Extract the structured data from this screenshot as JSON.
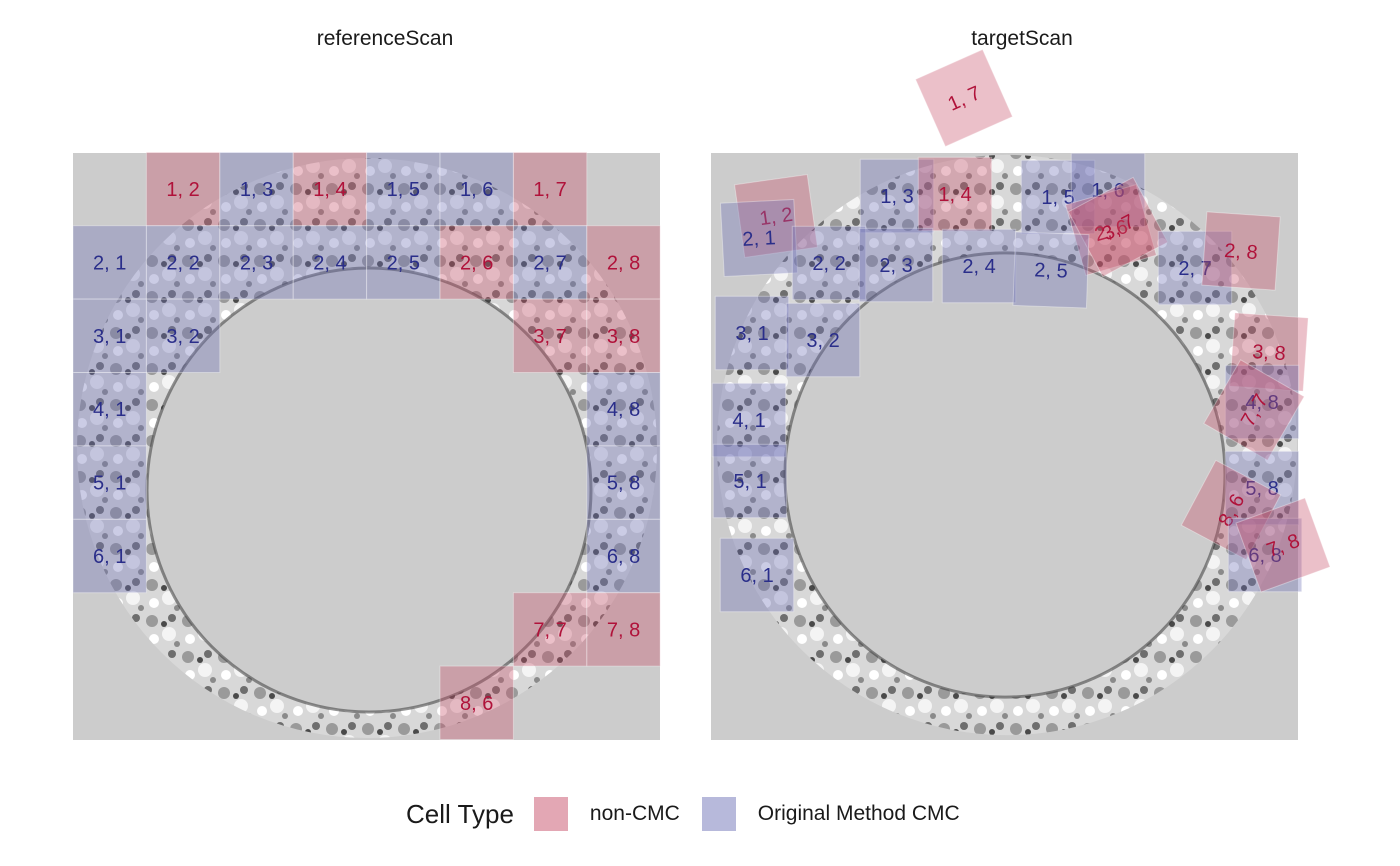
{
  "panels": [
    {
      "title": "referenceScan"
    },
    {
      "title": "targetScan"
    }
  ],
  "legend": {
    "title": "Cell Type",
    "items": [
      {
        "label": "non-CMC",
        "color": "#c8506a"
      },
      {
        "label": "Original Method CMC",
        "color": "#6f73b8"
      }
    ]
  },
  "colors": {
    "background": "#cccccc",
    "non_cmc_text": "#b0123a",
    "cmc_text": "#2a2e8a"
  },
  "reference_cells": [
    {
      "label": "1, 2",
      "type": "non-CMC"
    },
    {
      "label": "1, 3",
      "type": "Original Method CMC"
    },
    {
      "label": "1, 4",
      "type": "non-CMC"
    },
    {
      "label": "1, 5",
      "type": "Original Method CMC"
    },
    {
      "label": "1, 6",
      "type": "Original Method CMC"
    },
    {
      "label": "1, 7",
      "type": "non-CMC"
    },
    {
      "label": "2, 1",
      "type": "Original Method CMC"
    },
    {
      "label": "2, 2",
      "type": "Original Method CMC"
    },
    {
      "label": "2, 3",
      "type": "Original Method CMC"
    },
    {
      "label": "2, 4",
      "type": "Original Method CMC"
    },
    {
      "label": "2, 5",
      "type": "Original Method CMC"
    },
    {
      "label": "2, 6",
      "type": "non-CMC"
    },
    {
      "label": "2, 7",
      "type": "Original Method CMC"
    },
    {
      "label": "2, 8",
      "type": "non-CMC"
    },
    {
      "label": "3, 1",
      "type": "Original Method CMC"
    },
    {
      "label": "3, 2",
      "type": "Original Method CMC"
    },
    {
      "label": "3, 7",
      "type": "non-CMC"
    },
    {
      "label": "3, 8",
      "type": "non-CMC"
    },
    {
      "label": "4, 1",
      "type": "Original Method CMC"
    },
    {
      "label": "4, 8",
      "type": "Original Method CMC"
    },
    {
      "label": "5, 1",
      "type": "Original Method CMC"
    },
    {
      "label": "5, 8",
      "type": "Original Method CMC"
    },
    {
      "label": "6, 1",
      "type": "Original Method CMC"
    },
    {
      "label": "6, 8",
      "type": "Original Method CMC"
    },
    {
      "label": "7, 7",
      "type": "non-CMC"
    },
    {
      "label": "7, 8",
      "type": "non-CMC"
    },
    {
      "label": "8, 6",
      "type": "non-CMC"
    }
  ],
  "target_cells": [
    {
      "label": "1, 7",
      "type": "non-CMC"
    },
    {
      "label": "1, 2",
      "type": "non-CMC"
    },
    {
      "label": "2, 1",
      "type": "Original Method CMC"
    },
    {
      "label": "1, 3",
      "type": "Original Method CMC"
    },
    {
      "label": "1, 4",
      "type": "non-CMC"
    },
    {
      "label": "1, 5",
      "type": "Original Method CMC"
    },
    {
      "label": "1, 6",
      "type": "Original Method CMC"
    },
    {
      "label": "2, 6",
      "type": "non-CMC"
    },
    {
      "label": "3, 7",
      "type": "non-CMC"
    },
    {
      "label": "2, 2",
      "type": "Original Method CMC"
    },
    {
      "label": "2, 3",
      "type": "Original Method CMC"
    },
    {
      "label": "2, 4",
      "type": "Original Method CMC"
    },
    {
      "label": "2, 5",
      "type": "Original Method CMC"
    },
    {
      "label": "2, 7",
      "type": "Original Method CMC"
    },
    {
      "label": "2, 8",
      "type": "non-CMC"
    },
    {
      "label": "3, 1",
      "type": "Original Method CMC"
    },
    {
      "label": "3, 2",
      "type": "Original Method CMC"
    },
    {
      "label": "3, 8",
      "type": "non-CMC"
    },
    {
      "label": "4, 8",
      "type": "Original Method CMC"
    },
    {
      "label": "7, 7",
      "type": "non-CMC"
    },
    {
      "label": "4, 1",
      "type": "Original Method CMC"
    },
    {
      "label": "5, 1",
      "type": "Original Method CMC"
    },
    {
      "label": "5, 8",
      "type": "Original Method CMC"
    },
    {
      "label": "8, 6",
      "type": "non-CMC"
    },
    {
      "label": "6, 8",
      "type": "Original Method CMC"
    },
    {
      "label": "7, 8",
      "type": "non-CMC"
    },
    {
      "label": "6, 1",
      "type": "Original Method CMC"
    }
  ]
}
